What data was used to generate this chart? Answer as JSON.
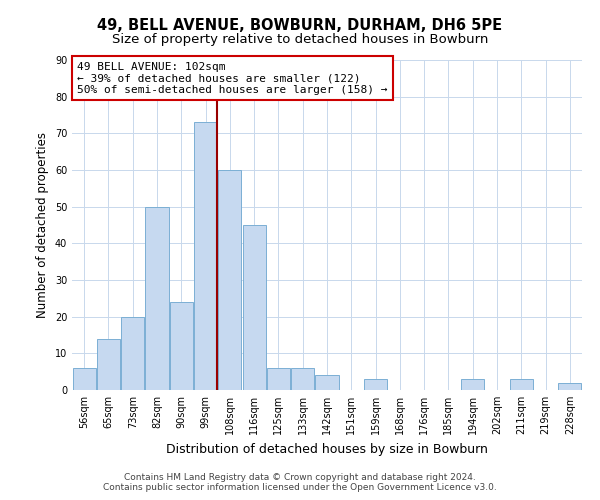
{
  "title": "49, BELL AVENUE, BOWBURN, DURHAM, DH6 5PE",
  "subtitle": "Size of property relative to detached houses in Bowburn",
  "xlabel": "Distribution of detached houses by size in Bowburn",
  "ylabel": "Number of detached properties",
  "bar_labels": [
    "56sqm",
    "65sqm",
    "73sqm",
    "82sqm",
    "90sqm",
    "99sqm",
    "108sqm",
    "116sqm",
    "125sqm",
    "133sqm",
    "142sqm",
    "151sqm",
    "159sqm",
    "168sqm",
    "176sqm",
    "185sqm",
    "194sqm",
    "202sqm",
    "211sqm",
    "219sqm",
    "228sqm"
  ],
  "bar_values": [
    6,
    14,
    20,
    50,
    24,
    73,
    60,
    45,
    6,
    6,
    4,
    0,
    3,
    0,
    0,
    0,
    3,
    0,
    3,
    0,
    2
  ],
  "bar_color": "#c6d9f0",
  "bar_edge_color": "#7bafd4",
  "vline_x_index": 5,
  "vline_color": "#990000",
  "annotation_line1": "49 BELL AVENUE: 102sqm",
  "annotation_line2": "← 39% of detached houses are smaller (122)",
  "annotation_line3": "50% of semi-detached houses are larger (158) →",
  "annotation_box_color": "#ffffff",
  "annotation_box_edge_color": "#cc0000",
  "ylim": [
    0,
    90
  ],
  "yticks": [
    0,
    10,
    20,
    30,
    40,
    50,
    60,
    70,
    80,
    90
  ],
  "footer_line1": "Contains HM Land Registry data © Crown copyright and database right 2024.",
  "footer_line2": "Contains public sector information licensed under the Open Government Licence v3.0.",
  "bg_color": "#ffffff",
  "grid_color": "#c8d8ec",
  "title_fontsize": 10.5,
  "subtitle_fontsize": 9.5,
  "xlabel_fontsize": 9,
  "ylabel_fontsize": 8.5,
  "tick_fontsize": 7,
  "annotation_fontsize": 8,
  "footer_fontsize": 6.5
}
